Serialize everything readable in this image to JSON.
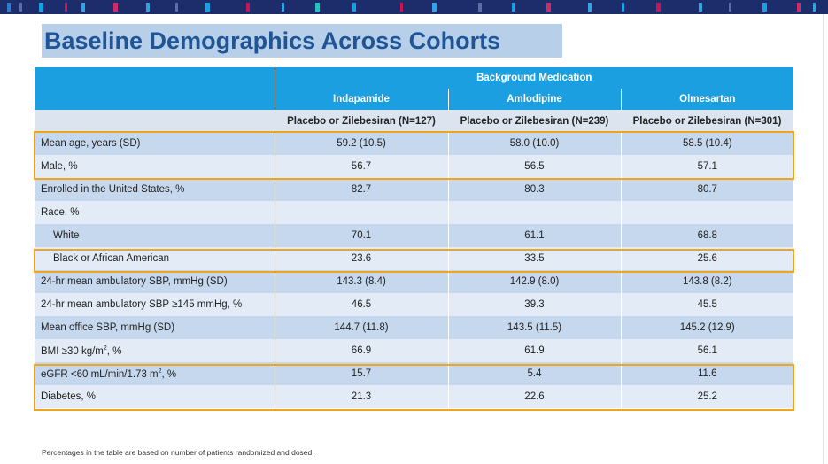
{
  "title": "Baseline Demographics Across Cohorts",
  "table": {
    "group_header": "Background Medication",
    "columns": [
      "Indapamide",
      "Amlodipine",
      "Olmesartan"
    ],
    "subheaders": [
      "Placebo or Zilebesiran (N=127)",
      "Placebo or Zilebesiran (N=239)",
      "Placebo or Zilebesiran (N=301)"
    ],
    "rows": [
      {
        "label": "Mean age, years (SD)",
        "values": [
          "59.2 (10.5)",
          "58.0 (10.0)",
          "58.5 (10.4)"
        ]
      },
      {
        "label": "Male, %",
        "values": [
          "56.7",
          "56.5",
          "57.1"
        ]
      },
      {
        "label": "Enrolled in the United States, %",
        "values": [
          "82.7",
          "80.3",
          "80.7"
        ]
      },
      {
        "label": "Race, %",
        "values": [
          "",
          "",
          ""
        ]
      },
      {
        "label": "White",
        "values": [
          "70.1",
          "61.1",
          "68.8"
        ]
      },
      {
        "label": "Black or African American",
        "values": [
          "23.6",
          "33.5",
          "25.6"
        ]
      },
      {
        "label": "24-hr mean ambulatory SBP, mmHg (SD)",
        "values": [
          "143.3 (8.4)",
          "142.9 (8.0)",
          "143.8 (8.2)"
        ]
      },
      {
        "label": "24-hr mean ambulatory SBP ≥145 mmHg, %",
        "values": [
          "46.5",
          "39.3",
          "45.5"
        ]
      },
      {
        "label": "Mean office SBP, mmHg (SD)",
        "values": [
          "144.7 (11.8)",
          "143.5 (11.5)",
          "145.2 (12.9)"
        ]
      },
      {
        "label_main": "BMI ≥30 kg/m",
        "label_sup": "2",
        "label_tail": ", %",
        "values": [
          "66.9",
          "61.9",
          "56.1"
        ]
      },
      {
        "label_main": "eGFR <60 mL/min/1.73 m",
        "label_sup": "2",
        "label_tail": ", %",
        "values": [
          "15.7",
          "5.4",
          "11.6"
        ]
      },
      {
        "label": "Diabetes, %",
        "values": [
          "21.3",
          "22.6",
          "25.2"
        ]
      }
    ]
  },
  "footnote": "Percentages in the table are based on number of patients randomized and dosed.",
  "colors": {
    "header_blue": "#1b9fe0",
    "title_blue": "#1f5597",
    "highlight": "#f1a51c",
    "row_dark": "#c6d8ee",
    "row_light": "#e3ecf6"
  }
}
